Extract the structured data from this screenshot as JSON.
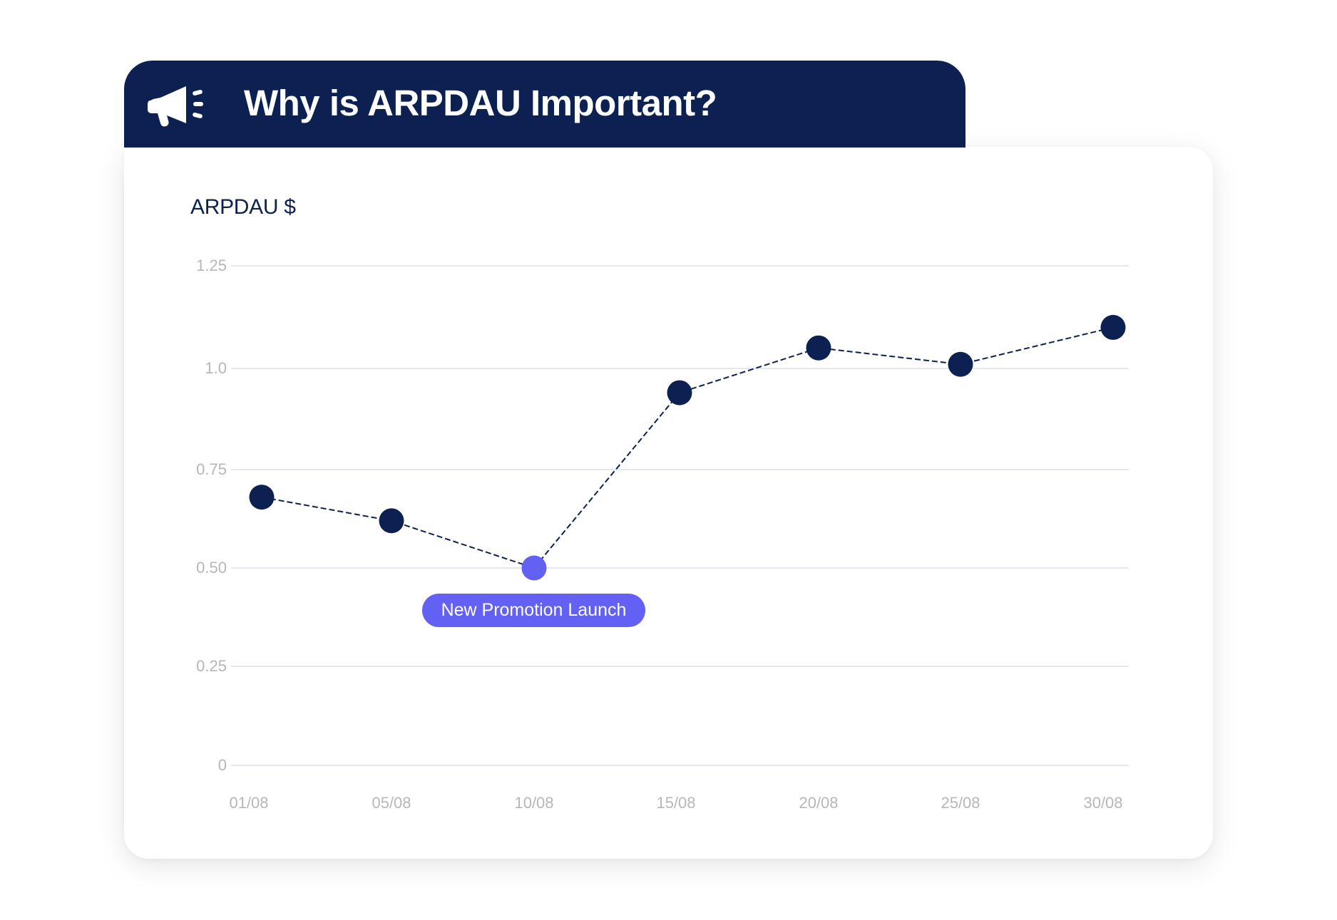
{
  "header": {
    "title": "Why is ARPDAU Important?",
    "icon": "megaphone-icon",
    "background_color": "#0c2151"
  },
  "card": {
    "metric_label": "ARPDAU $"
  },
  "annotation": {
    "label": "New Promotion Launch",
    "color": "#6360f4",
    "target_category": "10/08"
  },
  "colors": {
    "point": "#0c2151",
    "highlight_point": "#6360f4",
    "line": "#0c2151",
    "grid": "#dde1ec",
    "tick_text": "#b7b7b7"
  },
  "chart_data": {
    "type": "line",
    "title": "ARPDAU $",
    "xlabel": "",
    "ylabel": "ARPDAU $",
    "categories": [
      "01/08",
      "05/08",
      "10/08",
      "15/08",
      "20/08",
      "25/08",
      "30/08"
    ],
    "values": [
      0.68,
      0.62,
      0.5,
      0.94,
      1.05,
      1.01,
      1.1
    ],
    "highlight_index": 2,
    "annotations": [
      {
        "category": "10/08",
        "text": "New Promotion Launch"
      }
    ],
    "y_ticks": [
      "1.25",
      "1.0",
      "0.75",
      "0.50",
      "0.25",
      "0"
    ],
    "ylim": [
      0,
      1.25
    ],
    "grid": true,
    "line_style": "dashed",
    "legend": null
  }
}
